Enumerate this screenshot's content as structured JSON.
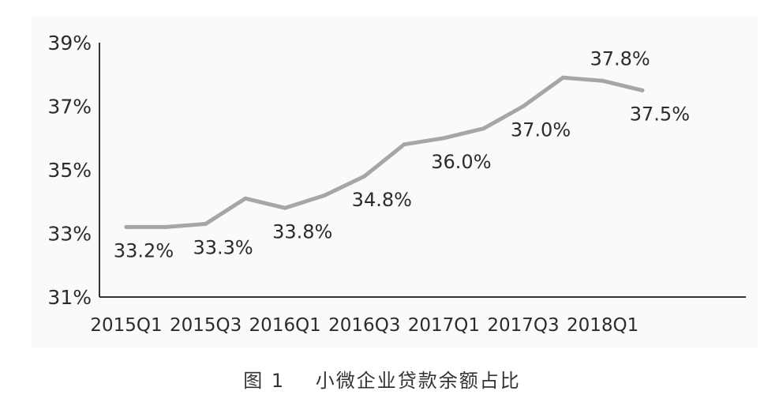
{
  "chart_data": {
    "type": "line",
    "title": "",
    "xlabel": "",
    "ylabel": "",
    "ylim": [
      31,
      39
    ],
    "yticks": [
      "31%",
      "33%",
      "35%",
      "37%",
      "39%"
    ],
    "ytick_values": [
      31,
      33,
      35,
      37,
      39
    ],
    "categories": [
      "2015Q1",
      "2015Q2",
      "2015Q3",
      "2015Q4",
      "2016Q1",
      "2016Q2",
      "2016Q3",
      "2016Q4",
      "2017Q1",
      "2017Q2",
      "2017Q3",
      "2017Q4",
      "2018Q1",
      "2018Q2"
    ],
    "xtick_labels": [
      "2015Q1",
      "",
      "2015Q3",
      "",
      "2016Q1",
      "",
      "2016Q3",
      "",
      "2017Q1",
      "",
      "2017Q3",
      "",
      "2018Q1",
      ""
    ],
    "series": [
      {
        "values": [
          33.2,
          33.2,
          33.3,
          34.1,
          33.8,
          34.2,
          34.8,
          35.8,
          36.0,
          36.3,
          37.0,
          37.9,
          37.8,
          37.5
        ]
      }
    ],
    "data_labels": [
      {
        "index": 0,
        "text": "33.2%",
        "position": "below"
      },
      {
        "index": 2,
        "text": "33.3%",
        "position": "below"
      },
      {
        "index": 4,
        "text": "33.8%",
        "position": "below"
      },
      {
        "index": 6,
        "text": "34.8%",
        "position": "below"
      },
      {
        "index": 8,
        "text": "36.0%",
        "position": "below"
      },
      {
        "index": 10,
        "text": "37.0%",
        "position": "below"
      },
      {
        "index": 12,
        "text": "37.8%",
        "position": "above"
      },
      {
        "index": 13,
        "text": "37.5%",
        "position": "below"
      }
    ],
    "grid": false,
    "line_color": "#a6a6a6",
    "axis_color": "#333333"
  },
  "caption": {
    "figure_number": "图 1",
    "text": "小微企业贷款余额占比"
  }
}
